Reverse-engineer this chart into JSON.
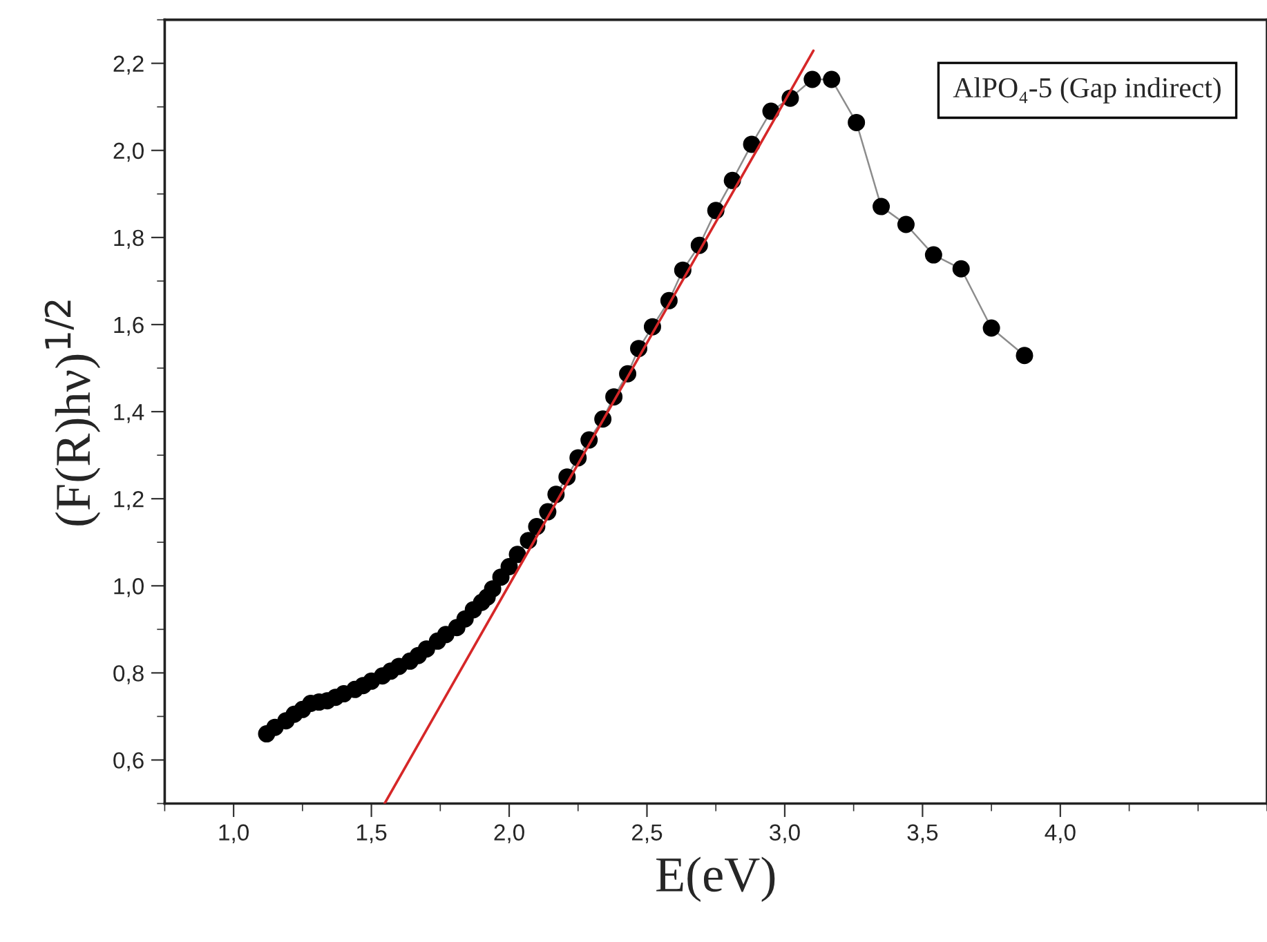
{
  "chart_data": {
    "type": "line",
    "xlabel": "E(eV)",
    "ylabel": "(F(R)hν)$^{1/2}$",
    "annotations": [
      "AlPO₄-5 (Gap indirect)"
    ],
    "series": [
      {
        "color": "#000000",
        "marker": "circle",
        "x": [
          1.12,
          1.15,
          1.19,
          1.22,
          1.25,
          1.28,
          1.31,
          1.34,
          1.37,
          1.4,
          1.44,
          1.47,
          1.5,
          1.54,
          1.57,
          1.6,
          1.64,
          1.67,
          1.7,
          1.74,
          1.77,
          1.81,
          1.84,
          1.87,
          1.9,
          1.92,
          1.94,
          1.97,
          2.0,
          2.03,
          2.07,
          2.1,
          2.14,
          2.17,
          2.21,
          2.25,
          2.29,
          2.34,
          2.38,
          2.43,
          2.47,
          2.52,
          2.58,
          2.63,
          2.69,
          2.75,
          2.81,
          2.88,
          2.95,
          3.02,
          3.1,
          3.17,
          3.26,
          3.35,
          3.44,
          3.54,
          3.64,
          3.75,
          3.87
        ],
        "values": [
          0.66,
          0.675,
          0.69,
          0.705,
          0.716,
          0.73,
          0.733,
          0.736,
          0.744,
          0.752,
          0.762,
          0.771,
          0.781,
          0.793,
          0.804,
          0.815,
          0.827,
          0.84,
          0.855,
          0.873,
          0.888,
          0.904,
          0.924,
          0.945,
          0.962,
          0.974,
          0.993,
          1.02,
          1.044,
          1.072,
          1.104,
          1.136,
          1.17,
          1.21,
          1.25,
          1.294,
          1.335,
          1.383,
          1.434,
          1.487,
          1.545,
          1.595,
          1.655,
          1.725,
          1.782,
          1.862,
          1.931,
          2.014,
          2.09,
          2.12,
          2.163,
          2.163,
          2.064,
          1.871,
          1.83,
          1.76,
          1.728,
          1.592,
          1.529
        ]
      },
      {
        "color": "#d62728",
        "marker": "none",
        "x": [
          1.548,
          3.104
        ],
        "values": [
          0.5,
          2.229
        ]
      }
    ],
    "xlim": [
      0.75,
      4.75
    ],
    "ylim": [
      0.5,
      2.3
    ],
    "xticks": [
      {
        "value": 1.0,
        "label": "1,0"
      },
      {
        "value": 1.5,
        "label": "1,5"
      },
      {
        "value": 2.0,
        "label": "2,0"
      },
      {
        "value": 2.5,
        "label": "2,5"
      },
      {
        "value": 3.0,
        "label": "3,0"
      },
      {
        "value": 3.5,
        "label": "3,5"
      },
      {
        "value": 4.0,
        "label": "4,0"
      }
    ],
    "yticks": [
      {
        "value": 0.6,
        "label": "0,6"
      },
      {
        "value": 0.8,
        "label": "0,8"
      },
      {
        "value": 1.0,
        "label": "1,0"
      },
      {
        "value": 1.2,
        "label": "1,2"
      },
      {
        "value": 1.4,
        "label": "1,4"
      },
      {
        "value": 1.6,
        "label": "1,6"
      },
      {
        "value": 1.8,
        "label": "1,8"
      },
      {
        "value": 2.0,
        "label": "2,0"
      },
      {
        "value": 2.2,
        "label": "2,2"
      }
    ],
    "grid": false,
    "legend": false
  }
}
